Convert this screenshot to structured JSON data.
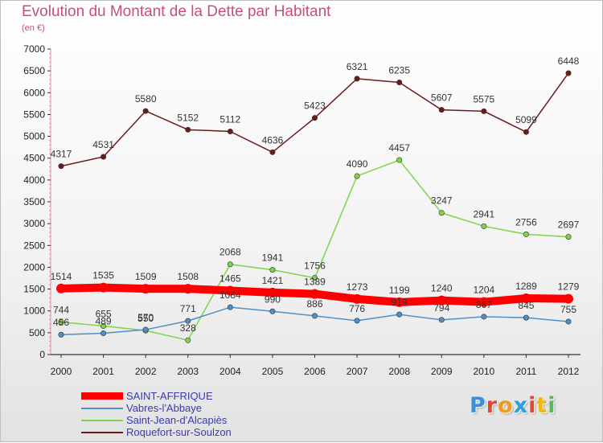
{
  "title": "Evolution du Montant de la Dette par Habitant",
  "subtitle": "(en €)",
  "brand": {
    "text": "Proxiti",
    "colors": [
      "#3a8fd8",
      "#e8442e",
      "#f39c12",
      "#2e9fd8",
      "#e8442e",
      "#f3b712",
      "#5cb85c"
    ]
  },
  "chart_data": {
    "type": "line",
    "title": "Evolution du Montant de la Dette par Habitant",
    "subtitle": "(en €)",
    "xlabel": "",
    "ylabel": "",
    "x": [
      "2000",
      "2001",
      "2002",
      "2003",
      "2004",
      "2005",
      "2006",
      "2007",
      "2008",
      "2009",
      "2010",
      "2011",
      "2012"
    ],
    "ylim": [
      0,
      7000
    ],
    "yticks": [
      "0",
      "500",
      "1000",
      "1500",
      "2000",
      "2500",
      "3000",
      "3500",
      "4000",
      "4500",
      "5000",
      "5500",
      "6000",
      "6500",
      "7000"
    ],
    "grid": false,
    "legend_position": "bottom-left",
    "series": [
      {
        "name": "SAINT-AFFRIQUE",
        "color": "#ff0000",
        "values": [
          1514,
          1535,
          1509,
          1508,
          1465,
          1421,
          1389,
          1273,
          1199,
          1240,
          1204,
          1289,
          1279
        ]
      },
      {
        "name": "Vabres-l'Abbaye",
        "color": "#4f90c8",
        "values": [
          456,
          489,
          570,
          771,
          1084,
          990,
          886,
          776,
          919,
          794,
          867,
          845,
          755
        ]
      },
      {
        "name": "Saint-Jean-d'Alcapiès",
        "color": "#7fd44a",
        "values": [
          744,
          655,
          550,
          328,
          2068,
          1941,
          1756,
          4090,
          4457,
          3247,
          2941,
          2756,
          2697
        ]
      },
      {
        "name": "Roquefort-sur-Soulzon",
        "color": "#6b1a1a",
        "values": [
          4317,
          4531,
          5580,
          5152,
          5112,
          4636,
          5423,
          6321,
          6235,
          5607,
          5575,
          5099,
          6448
        ]
      }
    ]
  }
}
